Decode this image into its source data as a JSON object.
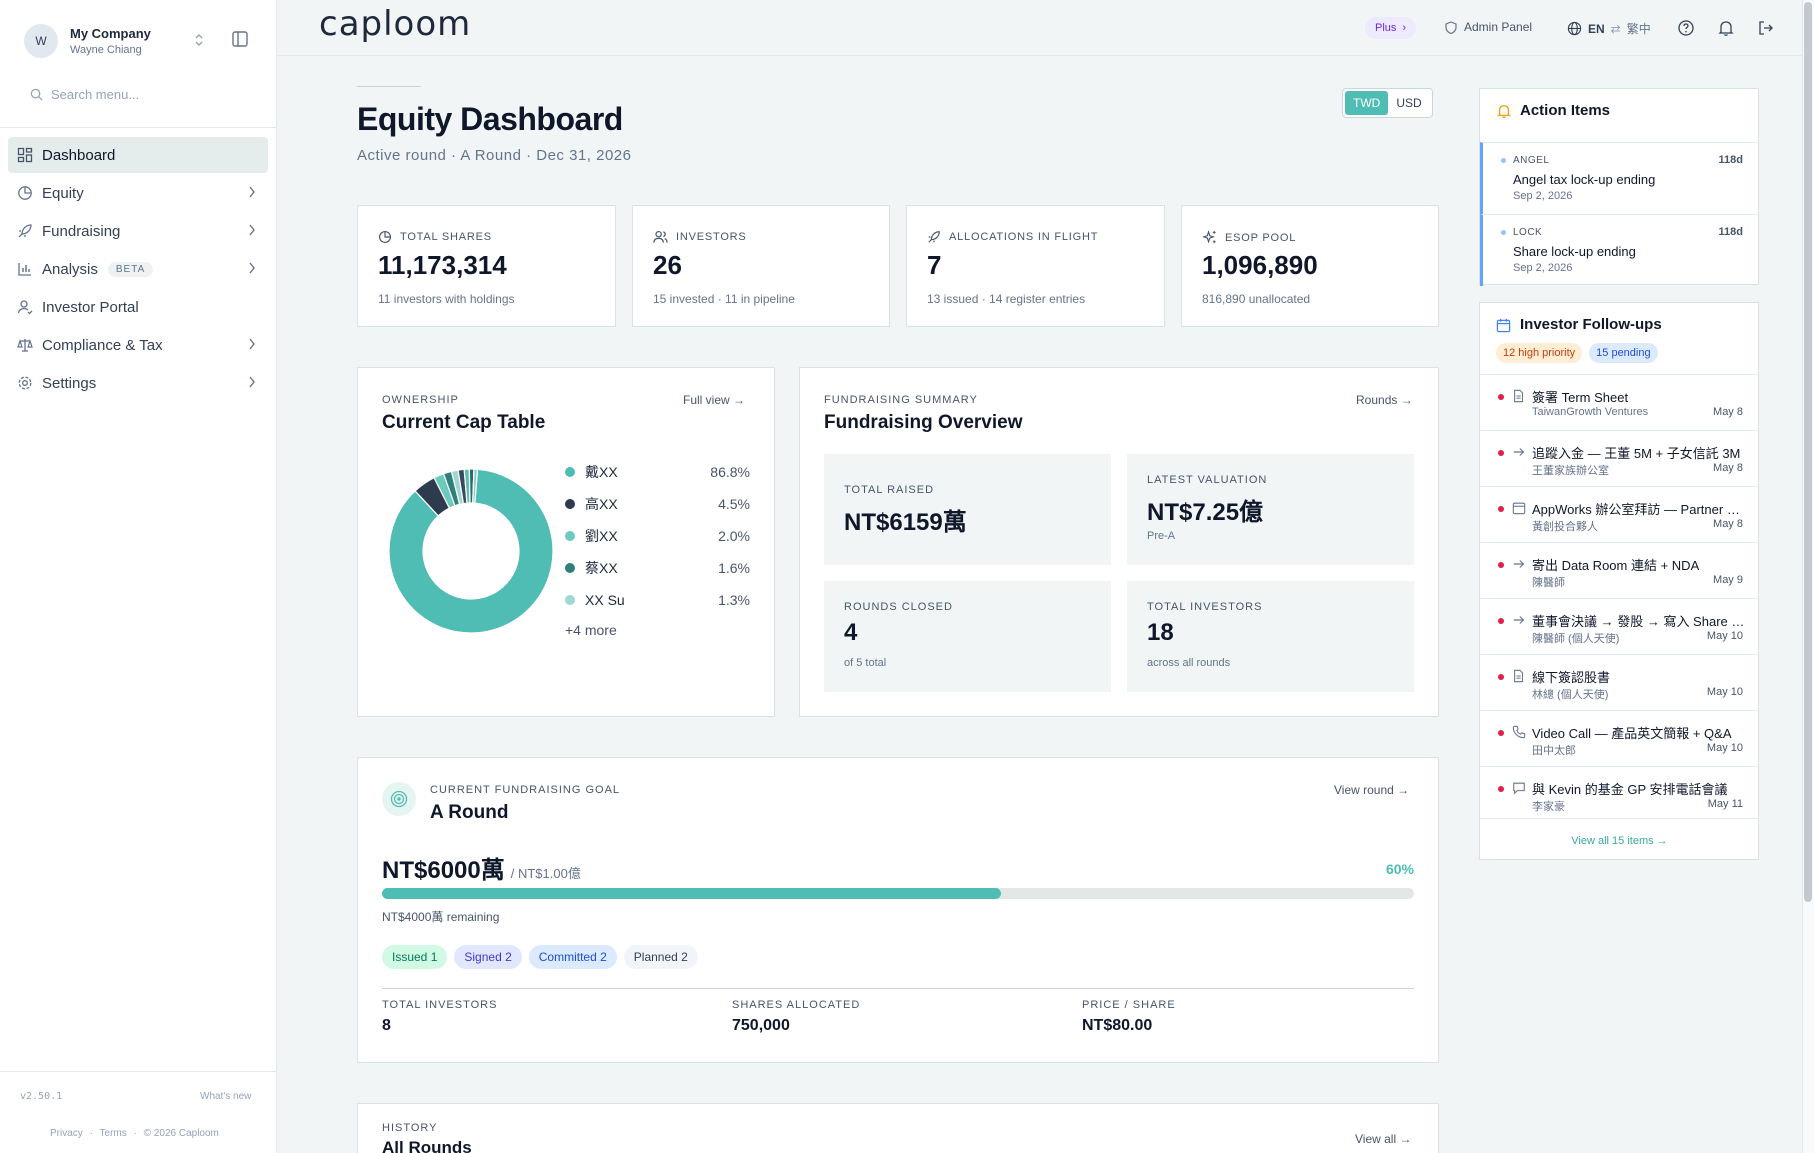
{
  "sidebar": {
    "company_initial": "W",
    "company_name": "My Company",
    "company_user": "Wayne Chiang",
    "search_placeholder": "Search menu...",
    "items": [
      {
        "label": "Dashboard",
        "icon": "dashboard-icon",
        "active": true
      },
      {
        "label": "Equity",
        "icon": "pie-chart-icon"
      },
      {
        "label": "Fundraising",
        "icon": "rocket-icon"
      },
      {
        "label": "Analysis",
        "icon": "bar-chart-icon",
        "badge": "BETA"
      },
      {
        "label": "Investor Portal",
        "icon": "user-icon"
      },
      {
        "label": "Compliance & Tax",
        "icon": "scale-icon"
      },
      {
        "label": "Settings",
        "icon": "gear-icon"
      }
    ],
    "version": "v2.50.1",
    "whats_new": "What's new",
    "privacy": "Privacy",
    "terms": "Terms",
    "copyright": "© 2026 Caploom",
    "dot": "·"
  },
  "topbar": {
    "logo": "caploom",
    "plan": "Plus",
    "plan_arrow": "›",
    "admin_panel": "Admin Panel",
    "lang_current": "EN",
    "lang_swap": "⇄",
    "lang_other": "繁中"
  },
  "header": {
    "title": "Equity Dashboard",
    "subtitle": "Active round · A Round · Dec 31, 2026",
    "currency_options": [
      "TWD",
      "USD"
    ],
    "currency_selected": "TWD"
  },
  "stats": [
    {
      "label": "Total Shares",
      "value": "11,173,314",
      "sub": "11 investors with holdings"
    },
    {
      "label": "Investors",
      "value": "26",
      "sub": "15 invested · 11 in pipeline"
    },
    {
      "label": "Allocations in Flight",
      "value": "7",
      "sub": "13 issued · 14 register entries"
    },
    {
      "label": "ESOP Pool",
      "value": "1,096,890",
      "sub": "816,890 unallocated"
    }
  ],
  "cap_table": {
    "eyebrow": "Ownership",
    "title": "Current Cap Table",
    "link": "Full view →",
    "more": "+4 more"
  },
  "chart_data": {
    "type": "pie",
    "style": "donut",
    "categories": [
      "戴XX",
      "高XX",
      "劉XX",
      "蔡XX",
      "XX Su"
    ],
    "values": [
      86.8,
      4.5,
      2.0,
      1.6,
      1.3
    ],
    "labels": [
      "86.8%",
      "4.5%",
      "2.0%",
      "1.6%",
      "1.3%"
    ],
    "colors": [
      "#4fbdb3",
      "#2d3b4e",
      "#6cc9be",
      "#2f7f7a",
      "#9ed8d1"
    ],
    "other_values": [
      1.2,
      1.0,
      0.9,
      0.7
    ],
    "other_colors": [
      "#3a4a5e",
      "#5fbfb5",
      "#2a6e6a",
      "#8fcfc8"
    ]
  },
  "fundraising": {
    "eyebrow": "Fundraising Summary",
    "title": "Fundraising Overview",
    "link": "Rounds →",
    "metrics": [
      {
        "label": "Total Raised",
        "value": "NT$6159萬",
        "sub": ""
      },
      {
        "label": "Latest Valuation",
        "value": "NT$7.25億",
        "sub": "Pre-A"
      },
      {
        "label": "Rounds Closed",
        "value": "4",
        "sub": "of 5 total"
      },
      {
        "label": "Total Investors",
        "value": "18",
        "sub": "across all rounds"
      }
    ]
  },
  "goal": {
    "eyebrow": "Current Fundraising Goal",
    "title": "A Round",
    "link": "View round →",
    "raised": "NT$6000萬",
    "target": "/ NT$1.00億",
    "percent_label": "60%",
    "progress": 0.6,
    "remaining": "NT$4000萬 remaining",
    "pills": [
      {
        "label": "Issued 1",
        "bg": "#d1fae5",
        "fg": "#047857"
      },
      {
        "label": "Signed 2",
        "bg": "#e0e7ff",
        "fg": "#4338ca"
      },
      {
        "label": "Committed 2",
        "bg": "#dbeafe",
        "fg": "#1d4ed8"
      },
      {
        "label": "Planned 2",
        "bg": "#f1f5f9",
        "fg": "#334155"
      }
    ],
    "stats": [
      {
        "label": "Total Investors",
        "value": "8"
      },
      {
        "label": "Shares Allocated",
        "value": "750,000"
      },
      {
        "label": "Price / Share",
        "value": "NT$80.00"
      }
    ]
  },
  "history": {
    "eyebrow": "History",
    "title": "All Rounds",
    "link": "View all →"
  },
  "action_items": {
    "title": "Action Items",
    "items": [
      {
        "tag": "ANGEL",
        "days": "118d",
        "title": "Angel tax lock-up ending",
        "date": "Sep 2, 2026"
      },
      {
        "tag": "LOCK",
        "days": "118d",
        "title": "Share lock-up ending",
        "date": "Sep 2, 2026"
      }
    ]
  },
  "followups": {
    "title": "Investor Follow-ups",
    "badge_high": "12 high priority",
    "badge_pending": "15 pending",
    "view_all": "View all 15 items →",
    "items": [
      {
        "icon": "document-icon",
        "title": "簽署 Term Sheet",
        "sub": "TaiwanGrowth Ventures",
        "date": "May 8"
      },
      {
        "icon": "arrow-right-icon",
        "title": "追蹤入金 — 王董 5M + 子女信託 3M",
        "sub": "王董家族辦公室",
        "date": "May 8"
      },
      {
        "icon": "calendar-icon",
        "title": "AppWorks 辦公室拜訪 — Partner M...",
        "sub": "黃創投合夥人",
        "date": "May 8"
      },
      {
        "icon": "arrow-right-icon",
        "title": "寄出 Data Room 連結 + NDA",
        "sub": "陳醫師",
        "date": "May 9"
      },
      {
        "icon": "arrow-right-icon",
        "title": "董事會決議 → 發股 → 寫入 Share Re...",
        "sub": "陳醫師 (個人天使)",
        "date": "May 10"
      },
      {
        "icon": "document-icon",
        "title": "線下簽認股書",
        "sub": "林總 (個人天使)",
        "date": "May 10"
      },
      {
        "icon": "phone-icon",
        "title": "Video Call — 產品英文簡報 + Q&A",
        "sub": "田中太郎",
        "date": "May 10"
      },
      {
        "icon": "chat-icon",
        "title": "與 Kevin 的基金 GP 安排電話會議",
        "sub": "李家豪",
        "date": "May 11"
      }
    ]
  }
}
